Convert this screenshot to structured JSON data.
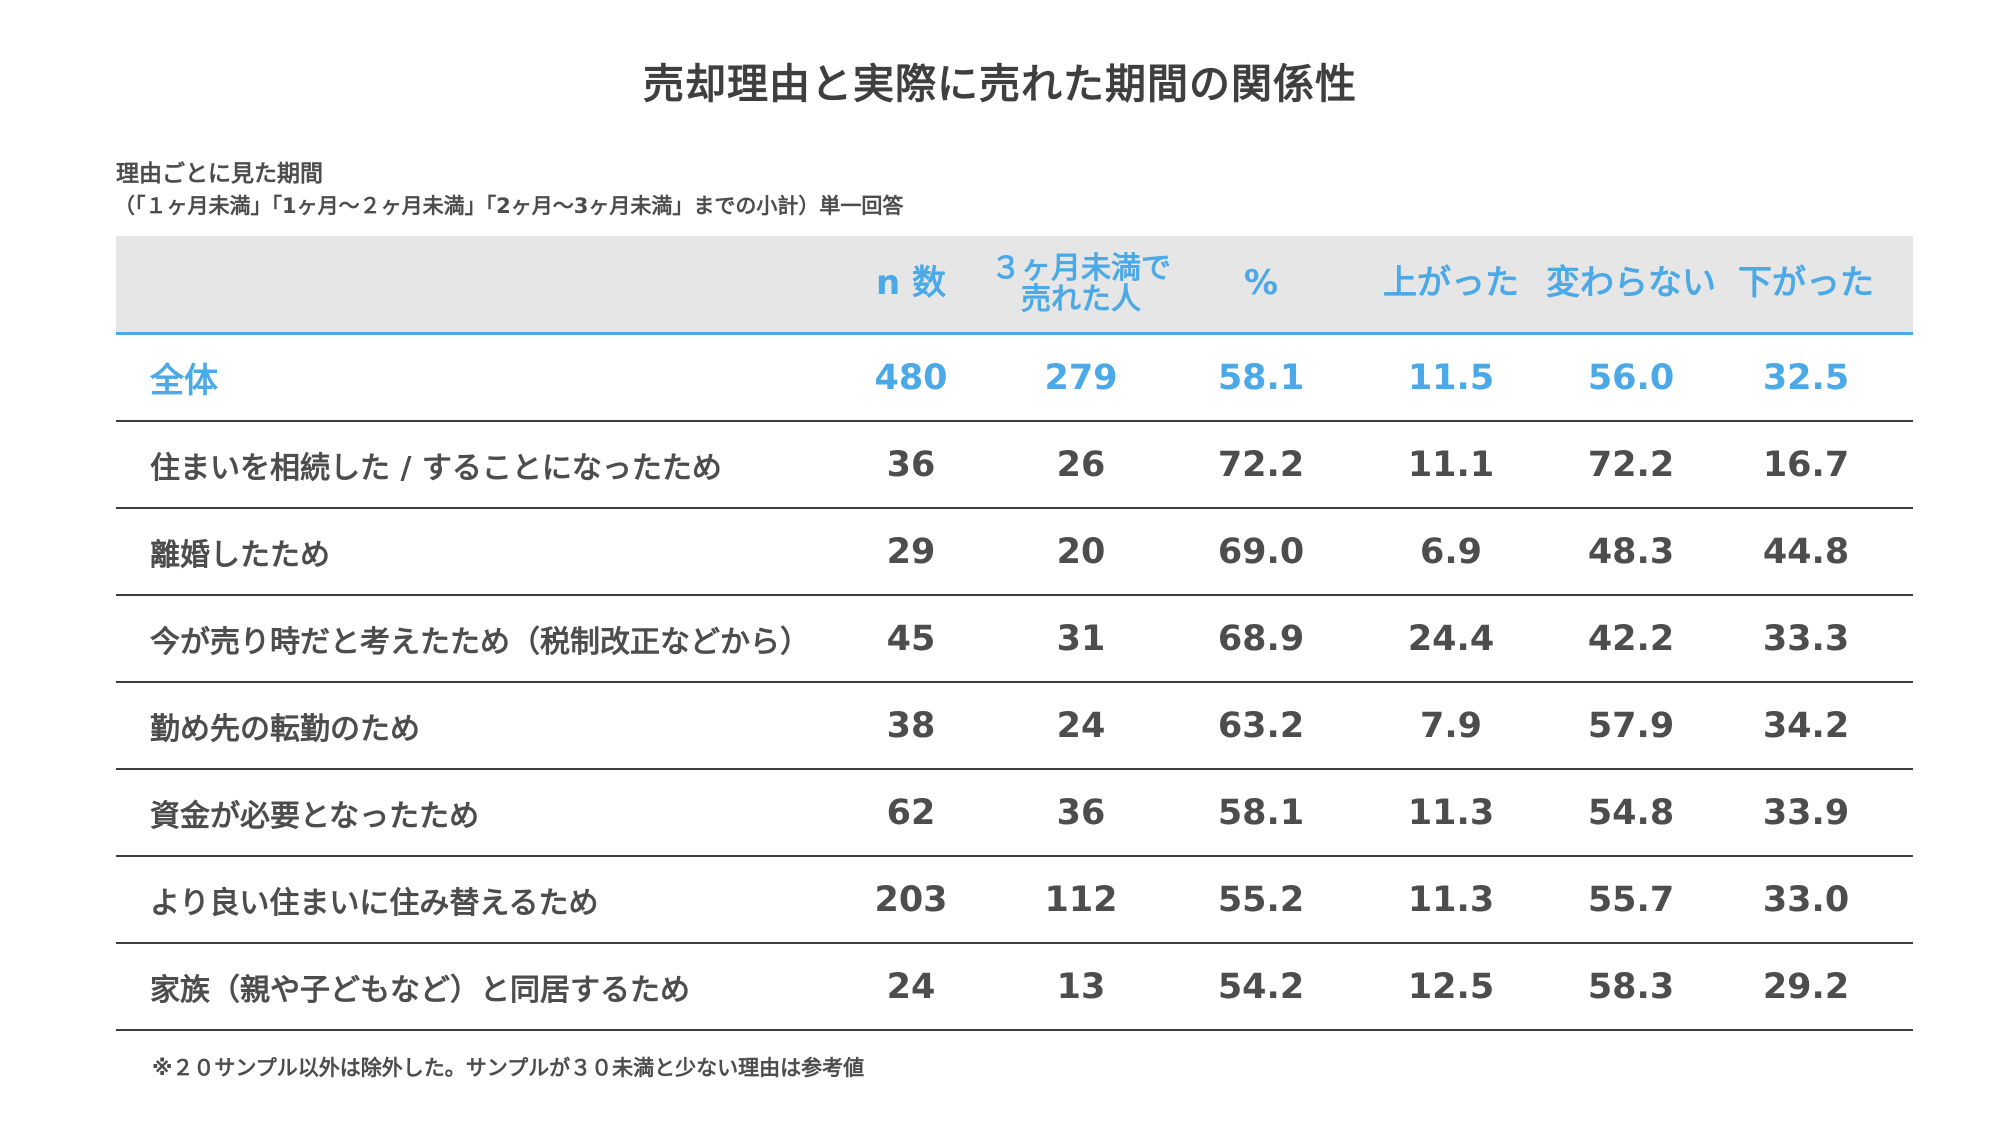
{
  "title": "売却理由と実際に売れた期間の関係性",
  "subtitle_line1": "理由ごとに見た期間",
  "subtitle_line2": "（「１ヶ月未満」「1ヶ月～２ヶ月未満」「2ヶ月～3ヶ月未満」までの小計）単一回答",
  "colors": {
    "accent": "#4aa9e6",
    "header_bg": "#e6e6e6",
    "text": "#4d4d4d",
    "rule": "#3d3d3d"
  },
  "chart_data": {
    "type": "table",
    "columns": [
      "",
      "n 数",
      "３ヶ月未満で売れた人",
      "%",
      "上がった",
      "変わらない",
      "下がった"
    ],
    "header": {
      "n": "n 数",
      "sold_line1": "３ヶ月未満で",
      "sold_line2": "売れた人",
      "pct": "%",
      "up": "上がった",
      "same": "変わらない",
      "down": "下がった"
    },
    "rows": [
      {
        "label": "全体",
        "n": "480",
        "sold": "279",
        "pct": "58.1",
        "up": "11.5",
        "same": "56.0",
        "down": "32.5"
      },
      {
        "label": "住まいを相続した / することになったため",
        "n": "36",
        "sold": "26",
        "pct": "72.2",
        "up": "11.1",
        "same": "72.2",
        "down": "16.7"
      },
      {
        "label": "離婚したため",
        "n": "29",
        "sold": "20",
        "pct": "69.0",
        "up": "6.9",
        "same": "48.3",
        "down": "44.8"
      },
      {
        "label": "今が売り時だと考えたため（税制改正などから）",
        "n": "45",
        "sold": "31",
        "pct": "68.9",
        "up": "24.4",
        "same": "42.2",
        "down": "33.3"
      },
      {
        "label": "勤め先の転勤のため",
        "n": "38",
        "sold": "24",
        "pct": "63.2",
        "up": "7.9",
        "same": "57.9",
        "down": "34.2"
      },
      {
        "label": "資金が必要となったため",
        "n": "62",
        "sold": "36",
        "pct": "58.1",
        "up": "11.3",
        "same": "54.8",
        "down": "33.9"
      },
      {
        "label": "より良い住まいに住み替えるため",
        "n": "203",
        "sold": "112",
        "pct": "55.2",
        "up": "11.3",
        "same": "55.7",
        "down": "33.0"
      },
      {
        "label": "家族（親や子どもなど）と同居するため",
        "n": "24",
        "sold": "13",
        "pct": "54.2",
        "up": "12.5",
        "same": "58.3",
        "down": "29.2"
      }
    ]
  },
  "note": "※２０サンプル以外は除外した。サンプルが３０未満と少ない理由は参考値"
}
